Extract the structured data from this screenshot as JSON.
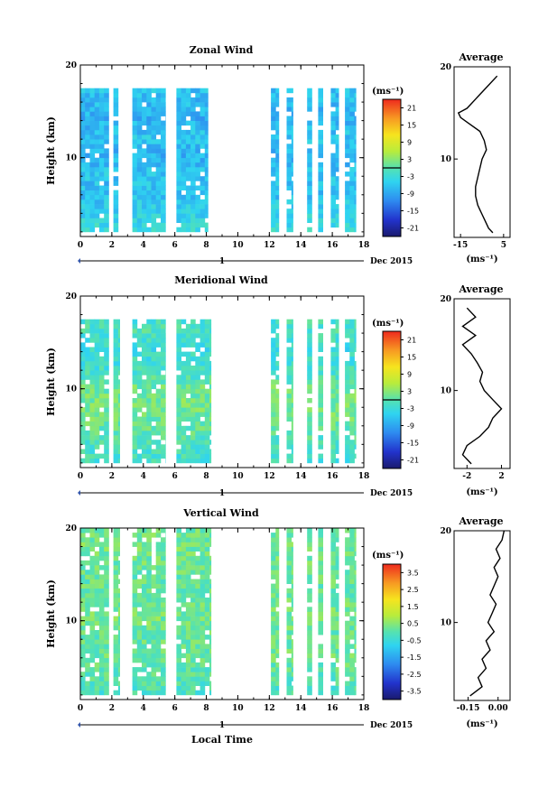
{
  "figure": {
    "date_label": "Dec 2015",
    "day_label": "1",
    "xlabel_bottom": "Local Time",
    "unit_label": "(ms⁻¹)"
  },
  "chart_data": [
    {
      "type": "heatmap",
      "title": "Zonal Wind",
      "xlabel": "",
      "ylabel": "Height (km)",
      "xlim": [
        0,
        18
      ],
      "ylim": [
        1.5,
        20
      ],
      "x_ticks": [
        0,
        2,
        4,
        6,
        8,
        10,
        12,
        14,
        16,
        18
      ],
      "y_ticks": [
        10,
        20
      ],
      "colorbar": {
        "range": [
          -24,
          24
        ],
        "ticks": [
          21,
          15,
          9,
          3,
          -3,
          -9,
          -15,
          -21
        ],
        "tick_labels": [
          "21",
          "15",
          "9",
          "3",
          "-3",
          "-9",
          "-15",
          "-21"
        ],
        "zero_line": 0
      },
      "data_columns_hours": [
        [
          0,
          1.8
        ],
        [
          2.1,
          2.4
        ],
        [
          3.3,
          5.4
        ],
        [
          6.1,
          8.1
        ],
        [
          12.1,
          12.6
        ],
        [
          13.1,
          13.5
        ],
        [
          14.4,
          14.7
        ],
        [
          15.1,
          15.4
        ],
        [
          15.9,
          16.4
        ],
        [
          16.8,
          17.5
        ]
      ],
      "profile_heights_km": [
        2,
        4,
        6,
        8,
        10,
        12,
        14,
        16,
        17.5
      ],
      "profile_values": [
        -3,
        -5,
        -7,
        -6,
        -8,
        -6,
        -8,
        -7,
        -6
      ],
      "average_profile": {
        "title": "Average",
        "xlabel": "(ms⁻¹)",
        "xlim": [
          -18,
          8
        ],
        "x_ticks": [
          -15,
          5
        ],
        "x_tick_labels": [
          "-15",
          "5"
        ],
        "y_ticks": [
          10,
          20
        ],
        "heights": [
          2,
          2.5,
          3,
          3.5,
          4,
          4.5,
          5,
          6,
          7,
          8,
          9,
          10,
          11,
          12,
          13,
          14,
          14.5,
          15,
          15.5,
          16,
          16.5,
          17,
          17.5,
          18,
          19
        ],
        "values": [
          0,
          -2,
          -3,
          -4,
          -5,
          -6,
          -7,
          -8,
          -8,
          -7,
          -6,
          -5,
          -3,
          -4,
          -6,
          -12,
          -15,
          -16,
          -12,
          -10,
          -8,
          -6,
          -4,
          -2,
          2
        ]
      }
    },
    {
      "type": "heatmap",
      "title": "Meridional Wind",
      "xlabel": "",
      "ylabel": "Height (km)",
      "xlim": [
        0,
        18
      ],
      "ylim": [
        1.5,
        20
      ],
      "x_ticks": [
        0,
        2,
        4,
        6,
        8,
        10,
        12,
        14,
        16,
        18
      ],
      "y_ticks": [
        10,
        20
      ],
      "colorbar": {
        "range": [
          -24,
          24
        ],
        "ticks": [
          21,
          15,
          9,
          3,
          -3,
          -9,
          -15,
          -21
        ],
        "tick_labels": [
          "21",
          "15",
          "9",
          "3",
          "-3",
          "-9",
          "-15",
          "-21"
        ],
        "zero_line": 0
      },
      "data_columns_hours": [
        [
          0,
          1.8
        ],
        [
          2.1,
          2.5
        ],
        [
          3.3,
          5.4
        ],
        [
          6.1,
          8.3
        ],
        [
          12.1,
          12.6
        ],
        [
          13.1,
          13.5
        ],
        [
          14.4,
          14.7
        ],
        [
          15.1,
          15.4
        ],
        [
          15.9,
          16.4
        ],
        [
          16.8,
          17.5
        ]
      ],
      "profile_heights_km": [
        2,
        4,
        6,
        8,
        10,
        12,
        14,
        16,
        17.5
      ],
      "profile_values": [
        -2,
        -1,
        1,
        2,
        1,
        -2,
        -3,
        -1,
        -2
      ],
      "average_profile": {
        "title": "Average",
        "xlabel": "(ms⁻¹)",
        "xlim": [
          -3.5,
          3
        ],
        "x_ticks": [
          -2,
          2
        ],
        "x_tick_labels": [
          "-2",
          "2"
        ],
        "y_ticks": [
          10,
          20
        ],
        "heights": [
          2,
          3,
          4,
          5,
          6,
          7,
          8,
          9,
          10,
          11,
          12,
          13,
          14,
          15,
          16,
          17,
          18,
          19
        ],
        "values": [
          -1.5,
          -2.5,
          -2,
          -0.5,
          0.5,
          1,
          2,
          1,
          0,
          -0.5,
          -0.2,
          -0.8,
          -1.5,
          -2.5,
          -1,
          -2.5,
          -1,
          -2
        ]
      }
    },
    {
      "type": "heatmap",
      "title": "Vertical Wind",
      "xlabel": "Local Time",
      "ylabel": "Height (km)",
      "xlim": [
        0,
        18
      ],
      "ylim": [
        1.5,
        20
      ],
      "x_ticks": [
        0,
        2,
        4,
        6,
        8,
        10,
        12,
        14,
        16,
        18
      ],
      "y_ticks": [
        10,
        20
      ],
      "colorbar": {
        "range": [
          -4,
          4
        ],
        "ticks": [
          3.5,
          2.5,
          1.5,
          0.5,
          -0.5,
          -1.5,
          -2.5,
          -3.5
        ],
        "tick_labels": [
          "3.5",
          "2.5",
          "1.5",
          "0.5",
          "-0.5",
          "-1.5",
          "-2.5",
          "-3.5"
        ],
        "zero_line": null
      },
      "data_columns_hours": [
        [
          0,
          1.8
        ],
        [
          2.1,
          2.5
        ],
        [
          3.3,
          5.4
        ],
        [
          6.1,
          8.3
        ],
        [
          12.1,
          12.6
        ],
        [
          13.1,
          13.5
        ],
        [
          14.4,
          14.7
        ],
        [
          15.1,
          15.4
        ],
        [
          15.9,
          16.4
        ],
        [
          16.8,
          17.5
        ]
      ],
      "profile_heights_km": [
        2,
        4,
        6,
        8,
        10,
        12,
        14,
        16,
        18,
        20
      ],
      "profile_values": [
        -0.2,
        0,
        0.2,
        0.1,
        0.3,
        0.2,
        0.1,
        0.2,
        0.3,
        0.2
      ],
      "average_profile": {
        "title": "Average",
        "xlabel": "(ms⁻¹)",
        "xlim": [
          -0.22,
          0.06
        ],
        "x_ticks": [
          -0.15,
          0.0
        ],
        "x_tick_labels": [
          "-0.15",
          "0.00"
        ],
        "y_ticks": [
          10,
          20
        ],
        "heights": [
          2,
          3,
          4,
          5,
          6,
          7,
          8,
          9,
          10,
          11,
          12,
          13,
          14,
          15,
          16,
          17,
          18,
          19,
          20
        ],
        "values": [
          -0.14,
          -0.08,
          -0.1,
          -0.06,
          -0.08,
          -0.04,
          -0.06,
          -0.02,
          -0.05,
          -0.03,
          -0.01,
          -0.04,
          -0.02,
          0.0,
          -0.02,
          0.01,
          -0.01,
          0.02,
          0.03
        ]
      }
    }
  ]
}
